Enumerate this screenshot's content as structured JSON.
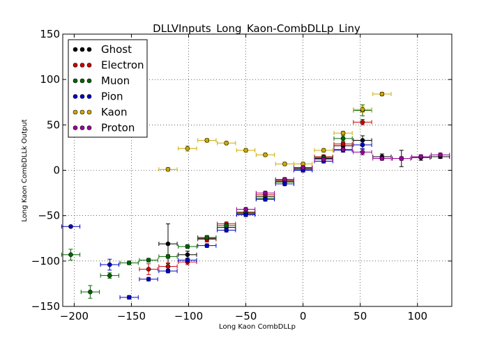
{
  "chart_data": {
    "type": "scatter",
    "title": "DLLVInputs_Long_Kaon-CombDLLp_Liny",
    "xlabel": "Long Kaon CombDLLp",
    "ylabel": "Long Kaon CombDLLk Output",
    "xlim": [
      -210,
      130
    ],
    "ylim": [
      -150,
      150
    ],
    "xticks": [
      -200,
      -150,
      -100,
      -50,
      0,
      50,
      100
    ],
    "yticks": [
      -150,
      -100,
      -50,
      0,
      50,
      100,
      150
    ],
    "grid": true,
    "legend_position": "top-left",
    "series": [
      {
        "name": "Ghost",
        "color": "#000000",
        "points": [
          {
            "x": -118,
            "y": -81,
            "xerr": 8,
            "yerr": 22
          },
          {
            "x": -101,
            "y": -93,
            "xerr": 8,
            "yerr": 4
          },
          {
            "x": -84,
            "y": -75,
            "xerr": 8,
            "yerr": 3
          },
          {
            "x": -67,
            "y": -63,
            "xerr": 8,
            "yerr": 3
          },
          {
            "x": -50,
            "y": -48,
            "xerr": 8,
            "yerr": 2
          },
          {
            "x": -33,
            "y": -29,
            "xerr": 8,
            "yerr": 2
          },
          {
            "x": -16,
            "y": -12,
            "xerr": 8,
            "yerr": 2
          },
          {
            "x": 0,
            "y": 2,
            "xerr": 8,
            "yerr": 2
          },
          {
            "x": 18,
            "y": 13,
            "xerr": 8,
            "yerr": 2
          },
          {
            "x": 35,
            "y": 27,
            "xerr": 8,
            "yerr": 3
          },
          {
            "x": 52,
            "y": 33,
            "xerr": 8,
            "yerr": 5
          },
          {
            "x": 69,
            "y": 15,
            "xerr": 8,
            "yerr": 3
          },
          {
            "x": 86,
            "y": 13,
            "xerr": 8,
            "yerr": 9
          },
          {
            "x": 103,
            "y": 14,
            "xerr": 8,
            "yerr": 3
          },
          {
            "x": 120,
            "y": 15,
            "xerr": 8,
            "yerr": 2
          }
        ]
      },
      {
        "name": "Electron",
        "color": "#cc0000",
        "points": [
          {
            "x": -135,
            "y": -109,
            "xerr": 8,
            "yerr": 6
          },
          {
            "x": -118,
            "y": -106,
            "xerr": 8,
            "yerr": 4
          },
          {
            "x": -101,
            "y": -101,
            "xerr": 8,
            "yerr": 3
          },
          {
            "x": -84,
            "y": -76,
            "xerr": 8,
            "yerr": 3
          },
          {
            "x": -67,
            "y": -59,
            "xerr": 8,
            "yerr": 2
          },
          {
            "x": -50,
            "y": -47,
            "xerr": 8,
            "yerr": 2
          },
          {
            "x": -33,
            "y": -27,
            "xerr": 8,
            "yerr": 2
          },
          {
            "x": -16,
            "y": -11,
            "xerr": 8,
            "yerr": 2
          },
          {
            "x": 0,
            "y": 3,
            "xerr": 8,
            "yerr": 2
          },
          {
            "x": 18,
            "y": 15,
            "xerr": 8,
            "yerr": 2
          },
          {
            "x": 35,
            "y": 29,
            "xerr": 8,
            "yerr": 2
          },
          {
            "x": 52,
            "y": 53,
            "xerr": 8,
            "yerr": 3
          }
        ]
      },
      {
        "name": "Muon",
        "color": "#006600",
        "points": [
          {
            "x": -203,
            "y": -93,
            "xerr": 8,
            "yerr": 6
          },
          {
            "x": -186,
            "y": -134,
            "xerr": 8,
            "yerr": 7
          },
          {
            "x": -169,
            "y": -116,
            "xerr": 8,
            "yerr": 3
          },
          {
            "x": -152,
            "y": -102,
            "xerr": 8,
            "yerr": 2
          },
          {
            "x": -135,
            "y": -99,
            "xerr": 8,
            "yerr": 2
          },
          {
            "x": -118,
            "y": -95,
            "xerr": 8,
            "yerr": 2
          },
          {
            "x": -101,
            "y": -84,
            "xerr": 8,
            "yerr": 2
          },
          {
            "x": -84,
            "y": -74,
            "xerr": 8,
            "yerr": 2
          },
          {
            "x": -67,
            "y": -61,
            "xerr": 8,
            "yerr": 2
          },
          {
            "x": -50,
            "y": -46,
            "xerr": 8,
            "yerr": 2
          },
          {
            "x": -33,
            "y": -31,
            "xerr": 8,
            "yerr": 2
          },
          {
            "x": -16,
            "y": -13,
            "xerr": 8,
            "yerr": 2
          },
          {
            "x": 0,
            "y": 1,
            "xerr": 8,
            "yerr": 2
          },
          {
            "x": 18,
            "y": 14,
            "xerr": 8,
            "yerr": 2
          },
          {
            "x": 35,
            "y": 35,
            "xerr": 8,
            "yerr": 3
          },
          {
            "x": 52,
            "y": 66,
            "xerr": 8,
            "yerr": 6
          }
        ]
      },
      {
        "name": "Pion",
        "color": "#0000cc",
        "points": [
          {
            "x": -203,
            "y": -62,
            "xerr": 8,
            "yerr": 1
          },
          {
            "x": -169,
            "y": -104,
            "xerr": 8,
            "yerr": 6
          },
          {
            "x": -152,
            "y": -140,
            "xerr": 8,
            "yerr": 2
          },
          {
            "x": -135,
            "y": -120,
            "xerr": 8,
            "yerr": 2
          },
          {
            "x": -118,
            "y": -111,
            "xerr": 8,
            "yerr": 2
          },
          {
            "x": -101,
            "y": -99,
            "xerr": 8,
            "yerr": 2
          },
          {
            "x": -84,
            "y": -83,
            "xerr": 8,
            "yerr": 2
          },
          {
            "x": -67,
            "y": -66,
            "xerr": 8,
            "yerr": 2
          },
          {
            "x": -50,
            "y": -49,
            "xerr": 8,
            "yerr": 2
          },
          {
            "x": -33,
            "y": -32,
            "xerr": 8,
            "yerr": 2
          },
          {
            "x": -16,
            "y": -15,
            "xerr": 8,
            "yerr": 2
          },
          {
            "x": 0,
            "y": 0,
            "xerr": 8,
            "yerr": 2
          },
          {
            "x": 18,
            "y": 10,
            "xerr": 8,
            "yerr": 2
          },
          {
            "x": 35,
            "y": 22,
            "xerr": 8,
            "yerr": 2
          },
          {
            "x": 52,
            "y": 28,
            "xerr": 8,
            "yerr": 4
          }
        ]
      },
      {
        "name": "Kaon",
        "color": "#ccaa00",
        "points": [
          {
            "x": -118,
            "y": 1,
            "xerr": 8,
            "yerr": 2
          },
          {
            "x": -101,
            "y": 24,
            "xerr": 8,
            "yerr": 3
          },
          {
            "x": -84,
            "y": 33,
            "xerr": 8,
            "yerr": 2
          },
          {
            "x": -67,
            "y": 30,
            "xerr": 8,
            "yerr": 2
          },
          {
            "x": -50,
            "y": 22,
            "xerr": 8,
            "yerr": 2
          },
          {
            "x": -33,
            "y": 17,
            "xerr": 8,
            "yerr": 2
          },
          {
            "x": -16,
            "y": 7,
            "xerr": 8,
            "yerr": 2
          },
          {
            "x": 0,
            "y": 7,
            "xerr": 8,
            "yerr": 2
          },
          {
            "x": 18,
            "y": 22,
            "xerr": 8,
            "yerr": 2
          },
          {
            "x": 35,
            "y": 41,
            "xerr": 8,
            "yerr": 2
          },
          {
            "x": 52,
            "y": 67,
            "xerr": 8,
            "yerr": 3
          },
          {
            "x": 69,
            "y": 84,
            "xerr": 8,
            "yerr": 2
          }
        ]
      },
      {
        "name": "Proton",
        "color": "#990099",
        "points": [
          {
            "x": -50,
            "y": -43,
            "xerr": 8,
            "yerr": 2
          },
          {
            "x": -33,
            "y": -25,
            "xerr": 8,
            "yerr": 2
          },
          {
            "x": -16,
            "y": -10,
            "xerr": 8,
            "yerr": 2
          },
          {
            "x": 0,
            "y": 3,
            "xerr": 8,
            "yerr": 2
          },
          {
            "x": 18,
            "y": 12,
            "xerr": 8,
            "yerr": 2
          },
          {
            "x": 35,
            "y": 23,
            "xerr": 8,
            "yerr": 2
          },
          {
            "x": 52,
            "y": 20,
            "xerr": 8,
            "yerr": 3
          },
          {
            "x": 69,
            "y": 13,
            "xerr": 8,
            "yerr": 2
          },
          {
            "x": 86,
            "y": 13,
            "xerr": 8,
            "yerr": 2
          },
          {
            "x": 103,
            "y": 15,
            "xerr": 8,
            "yerr": 2
          },
          {
            "x": 120,
            "y": 17,
            "xerr": 8,
            "yerr": 2
          }
        ]
      }
    ]
  }
}
